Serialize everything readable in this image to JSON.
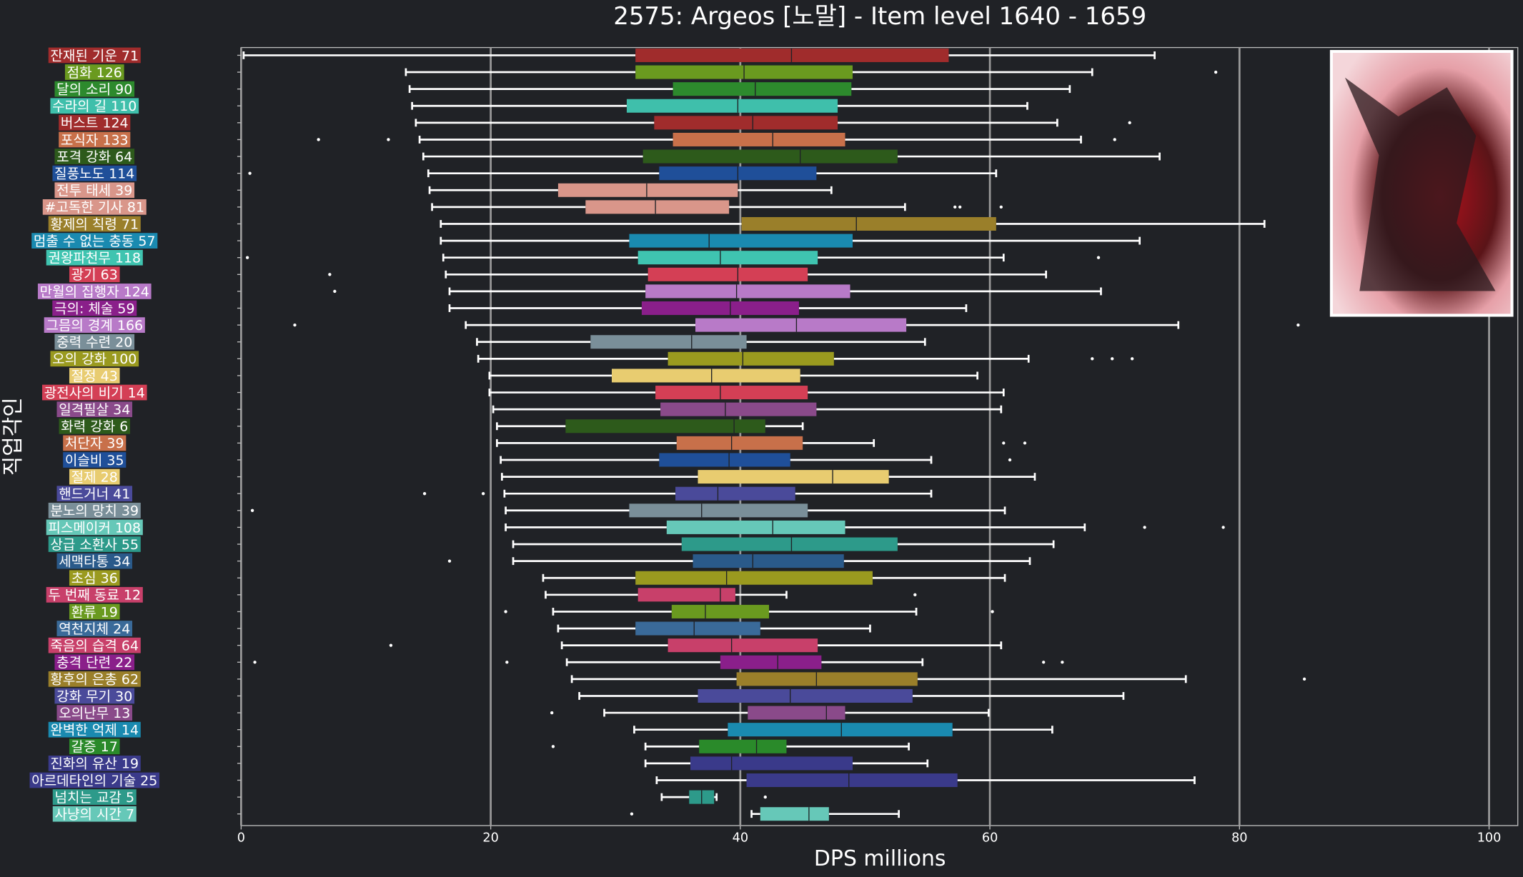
{
  "chart_data": {
    "type": "boxplot",
    "title": "2575: Argeos [노말] - Item level 1640 - 1659",
    "x_label": "DPS millions",
    "y_label": "직업각인",
    "xlim": [
      0,
      102.3
    ],
    "xticks": [
      0,
      20,
      40,
      60,
      80,
      100
    ],
    "grid": true,
    "series": [
      {
        "name": "잔재된 기운 71",
        "color": "#a02c2c",
        "low": 0.2,
        "q1": 31.6,
        "median": 44.1,
        "q3": 56.7,
        "high": 73.2,
        "outliers": []
      },
      {
        "name": "점화 126",
        "color": "#6a9a1f",
        "low": 13.2,
        "q1": 31.6,
        "median": 40.3,
        "q3": 49.0,
        "high": 68.2,
        "outliers": [
          78.1
        ]
      },
      {
        "name": "달의 소리 90",
        "color": "#2d8a2d",
        "low": 13.5,
        "q1": 34.6,
        "median": 41.2,
        "q3": 48.9,
        "high": 66.4,
        "outliers": []
      },
      {
        "name": "수라의 길 110",
        "color": "#3fbfab",
        "low": 13.7,
        "q1": 30.9,
        "median": 39.8,
        "q3": 47.8,
        "high": 63.0,
        "outliers": []
      },
      {
        "name": "버스트 124",
        "color": "#a02c2c",
        "low": 14.0,
        "q1": 33.1,
        "median": 41.0,
        "q3": 47.8,
        "high": 65.4,
        "outliers": [
          71.2
        ]
      },
      {
        "name": "포식자 133",
        "color": "#c8704a",
        "low": 14.3,
        "q1": 34.6,
        "median": 42.6,
        "q3": 48.4,
        "high": 67.3,
        "outliers": [
          6.2,
          11.8,
          70.0
        ]
      },
      {
        "name": "포격 강화 64",
        "color": "#2d5a1b",
        "low": 14.6,
        "q1": 32.2,
        "median": 44.8,
        "q3": 52.6,
        "high": 73.6,
        "outliers": []
      },
      {
        "name": "질풍노도 114",
        "color": "#1f4f99",
        "low": 15.0,
        "q1": 33.5,
        "median": 39.8,
        "q3": 46.1,
        "high": 60.5,
        "outliers": [
          0.7
        ]
      },
      {
        "name": "전투 태세 39",
        "color": "#d9968a",
        "low": 15.1,
        "q1": 25.4,
        "median": 32.5,
        "q3": 39.8,
        "high": 47.3,
        "outliers": []
      },
      {
        "name": "#고독한 기사 81",
        "color": "#d9968a",
        "low": 15.3,
        "q1": 27.6,
        "median": 33.2,
        "q3": 39.1,
        "high": 53.2,
        "outliers": [
          57.2,
          57.6,
          60.9
        ]
      },
      {
        "name": "황제의 칙령 71",
        "color": "#9a7f2a",
        "low": 16.0,
        "q1": 40.1,
        "median": 49.3,
        "q3": 60.5,
        "high": 82.0,
        "outliers": []
      },
      {
        "name": "멈출 수 없는 충동 57",
        "color": "#1a8ab0",
        "low": 16.0,
        "q1": 31.1,
        "median": 37.5,
        "q3": 49.0,
        "high": 72.0,
        "outliers": []
      },
      {
        "name": "권왕파천무 118",
        "color": "#3fc4b0",
        "low": 16.2,
        "q1": 31.8,
        "median": 38.4,
        "q3": 46.2,
        "high": 61.1,
        "outliers": [
          0.5,
          68.7
        ]
      },
      {
        "name": "광기 63",
        "color": "#d43f55",
        "low": 16.4,
        "q1": 32.6,
        "median": 39.8,
        "q3": 45.4,
        "high": 64.5,
        "outliers": [
          7.1
        ]
      },
      {
        "name": "만월의 집행자 124",
        "color": "#b87ac8",
        "low": 16.7,
        "q1": 32.4,
        "median": 39.7,
        "q3": 48.8,
        "high": 68.9,
        "outliers": [
          7.5
        ]
      },
      {
        "name": "극의: 체술 59",
        "color": "#8a1f8a",
        "low": 16.7,
        "q1": 32.1,
        "median": 39.2,
        "q3": 44.7,
        "high": 58.1,
        "outliers": []
      },
      {
        "name": "그믐의 경계 166",
        "color": "#b87ac8",
        "low": 18.0,
        "q1": 36.4,
        "median": 44.5,
        "q3": 53.3,
        "high": 75.1,
        "outliers": [
          4.3,
          84.7
        ]
      },
      {
        "name": "중력 수련 20",
        "color": "#7a8f99",
        "low": 18.9,
        "q1": 28.0,
        "median": 36.1,
        "q3": 40.5,
        "high": 54.8,
        "outliers": []
      },
      {
        "name": "오의 강화 100",
        "color": "#9a9a1f",
        "low": 19.0,
        "q1": 34.2,
        "median": 40.2,
        "q3": 47.5,
        "high": 63.1,
        "outliers": [
          68.2,
          69.8,
          71.4
        ]
      },
      {
        "name": "절정 43",
        "color": "#e8cc70",
        "low": 19.9,
        "q1": 29.7,
        "median": 37.7,
        "q3": 44.8,
        "high": 59.0,
        "outliers": []
      },
      {
        "name": "광전사의 비기 14",
        "color": "#d43f55",
        "low": 19.9,
        "q1": 33.2,
        "median": 38.4,
        "q3": 45.4,
        "high": 61.1,
        "outliers": []
      },
      {
        "name": "일격필살 34",
        "color": "#8a4a8a",
        "low": 20.2,
        "q1": 33.6,
        "median": 38.8,
        "q3": 46.1,
        "high": 60.9,
        "outliers": []
      },
      {
        "name": "화력 강화 6",
        "color": "#2d5a1b",
        "low": 20.5,
        "q1": 26.0,
        "median": 39.5,
        "q3": 42.0,
        "high": 45.0,
        "outliers": []
      },
      {
        "name": "처단자 39",
        "color": "#c8704a",
        "low": 20.5,
        "q1": 34.9,
        "median": 39.3,
        "q3": 45.0,
        "high": 50.7,
        "outliers": [
          61.1,
          62.8
        ]
      },
      {
        "name": "이슬비 35",
        "color": "#1f4f99",
        "low": 20.8,
        "q1": 33.5,
        "median": 39.1,
        "q3": 44.0,
        "high": 55.3,
        "outliers": [
          61.6
        ]
      },
      {
        "name": "절제 28",
        "color": "#e8cc70",
        "low": 20.9,
        "q1": 36.6,
        "median": 47.4,
        "q3": 51.9,
        "high": 63.6,
        "outliers": []
      },
      {
        "name": "핸드거너 41",
        "color": "#4a4a9a",
        "low": 21.1,
        "q1": 34.8,
        "median": 38.2,
        "q3": 44.4,
        "high": 55.3,
        "outliers": [
          14.7,
          19.4
        ]
      },
      {
        "name": "분노의 망치 39",
        "color": "#7a8f99",
        "low": 21.2,
        "q1": 31.1,
        "median": 36.9,
        "q3": 45.4,
        "high": 61.2,
        "outliers": [
          0.9
        ]
      },
      {
        "name": "피스메이커 108",
        "color": "#66c8b8",
        "low": 21.2,
        "q1": 34.1,
        "median": 42.6,
        "q3": 48.4,
        "high": 67.6,
        "outliers": [
          72.4,
          78.7
        ]
      },
      {
        "name": "상급 소환사 55",
        "color": "#2d9a8a",
        "low": 21.8,
        "q1": 35.3,
        "median": 44.1,
        "q3": 52.6,
        "high": 65.1,
        "outliers": []
      },
      {
        "name": "세맥타통 34",
        "color": "#2a5a8a",
        "low": 21.8,
        "q1": 36.2,
        "median": 41.0,
        "q3": 48.3,
        "high": 63.2,
        "outliers": [
          16.7
        ]
      },
      {
        "name": "초심 36",
        "color": "#9a9a1f",
        "low": 24.2,
        "q1": 31.6,
        "median": 38.9,
        "q3": 50.6,
        "high": 61.2,
        "outliers": []
      },
      {
        "name": "두 번째 동료 12",
        "color": "#c8406a",
        "low": 24.4,
        "q1": 31.8,
        "median": 38.4,
        "q3": 39.6,
        "high": 43.7,
        "outliers": [
          54.0
        ]
      },
      {
        "name": "환류 19",
        "color": "#6a9a1f",
        "low": 25.0,
        "q1": 34.5,
        "median": 37.2,
        "q3": 42.3,
        "high": 54.1,
        "outliers": [
          21.2,
          60.2
        ]
      },
      {
        "name": "역천지체 24",
        "color": "#3a6a99",
        "low": 25.4,
        "q1": 31.6,
        "median": 36.3,
        "q3": 41.6,
        "high": 50.4,
        "outliers": []
      },
      {
        "name": "죽음의 습격 64",
        "color": "#c8406a",
        "low": 25.7,
        "q1": 34.2,
        "median": 39.3,
        "q3": 46.2,
        "high": 60.9,
        "outliers": [
          12.0
        ]
      },
      {
        "name": "충격 단련 22",
        "color": "#8a1f8a",
        "low": 26.1,
        "q1": 38.4,
        "median": 43.0,
        "q3": 46.5,
        "high": 54.6,
        "outliers": [
          1.1,
          21.3,
          64.3,
          65.8
        ]
      },
      {
        "name": "황후의 은총 62",
        "color": "#9a7f2a",
        "low": 26.5,
        "q1": 39.7,
        "median": 46.1,
        "q3": 54.2,
        "high": 75.7,
        "outliers": [
          85.2
        ]
      },
      {
        "name": "강화 무기 30",
        "color": "#4a4a9a",
        "low": 27.1,
        "q1": 36.6,
        "median": 44.0,
        "q3": 53.8,
        "high": 70.7,
        "outliers": []
      },
      {
        "name": "오의난무 13",
        "color": "#8a4a8a",
        "low": 29.1,
        "q1": 40.6,
        "median": 46.9,
        "q3": 48.4,
        "high": 59.9,
        "outliers": [
          24.9
        ]
      },
      {
        "name": "완벽한 억제 14",
        "color": "#1a8ab0",
        "low": 31.5,
        "q1": 39.0,
        "median": 48.1,
        "q3": 57.0,
        "high": 65.0,
        "outliers": []
      },
      {
        "name": "갈증 17",
        "color": "#2a8a2a",
        "low": 32.4,
        "q1": 36.7,
        "median": 41.3,
        "q3": 43.7,
        "high": 53.5,
        "outliers": [
          25.0
        ]
      },
      {
        "name": "진화의 유산 19",
        "color": "#3a3a8a",
        "low": 32.4,
        "q1": 36.0,
        "median": 39.3,
        "q3": 49.0,
        "high": 55.0,
        "outliers": []
      },
      {
        "name": "아르데타인의 기술 25",
        "color": "#3a3a8a",
        "low": 33.3,
        "q1": 40.5,
        "median": 48.7,
        "q3": 57.4,
        "high": 76.4,
        "outliers": []
      },
      {
        "name": "넘치는 교감 5",
        "color": "#2d9a8a",
        "low": 33.7,
        "q1": 35.9,
        "median": 36.9,
        "q3": 37.9,
        "high": 38.1,
        "outliers": [
          42.0
        ]
      },
      {
        "name": "사냥의 시간 7",
        "color": "#66c8b8",
        "low": 40.9,
        "q1": 41.6,
        "median": 45.5,
        "q3": 47.1,
        "high": 52.7,
        "outliers": [
          31.3
        ]
      }
    ]
  }
}
